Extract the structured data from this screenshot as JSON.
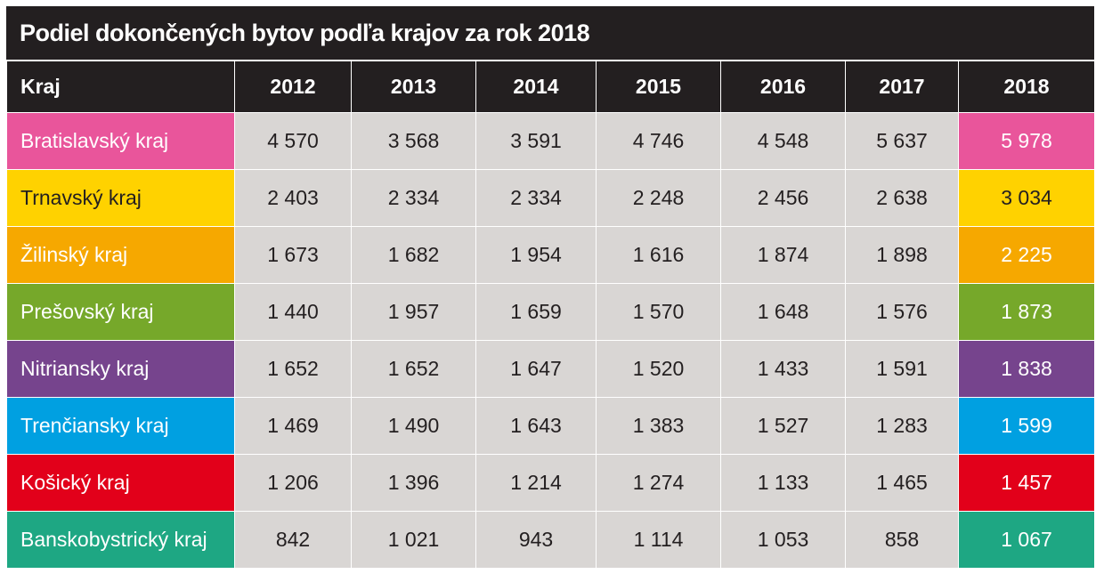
{
  "chart_data": {
    "type": "table",
    "title": "Podiel dokončených bytov podľa krajov za rok 2018",
    "row_header_label": "Kraj",
    "columns": [
      "2012",
      "2013",
      "2014",
      "2015",
      "2016",
      "2017",
      "2018"
    ],
    "rows": [
      {
        "name": "Bratislavský kraj",
        "color": "#e9559b",
        "dark_text": false,
        "values": [
          "4 570",
          "3 568",
          "3 591",
          "4 746",
          "4 548",
          "5 637",
          "5 978"
        ]
      },
      {
        "name": "Trnavský kraj",
        "color": "#ffd200",
        "dark_text": true,
        "values": [
          "2 403",
          "2 334",
          "2 334",
          "2 248",
          "2 456",
          "2 638",
          "3 034"
        ]
      },
      {
        "name": "Žilinský kraj",
        "color": "#f6a800",
        "dark_text": false,
        "values": [
          "1 673",
          "1 682",
          "1 954",
          "1 616",
          "1 874",
          "1 898",
          "2 225"
        ]
      },
      {
        "name": "Prešovský kraj",
        "color": "#76a82a",
        "dark_text": false,
        "values": [
          "1 440",
          "1 957",
          "1 659",
          "1 570",
          "1 648",
          "1 576",
          "1 873"
        ]
      },
      {
        "name": "Nitriansky kraj",
        "color": "#76448d",
        "dark_text": false,
        "values": [
          "1 652",
          "1 652",
          "1 647",
          "1 520",
          "1 433",
          "1 591",
          "1 838"
        ]
      },
      {
        "name": "Trenčiansky kraj",
        "color": "#00a0e1",
        "dark_text": false,
        "values": [
          "1 469",
          "1 490",
          "1 643",
          "1 383",
          "1 527",
          "1 283",
          "1 599"
        ]
      },
      {
        "name": "Košický kraj",
        "color": "#e2001a",
        "dark_text": false,
        "values": [
          "1 206",
          "1 396",
          "1 214",
          "1 274",
          "1 133",
          "1 465",
          "1 457"
        ]
      },
      {
        "name": "Banskobystrický kraj",
        "color": "#1ea783",
        "dark_text": false,
        "values": [
          "842",
          "1 021",
          "943",
          "1 114",
          "1 053",
          "858",
          "1 067"
        ]
      }
    ]
  }
}
